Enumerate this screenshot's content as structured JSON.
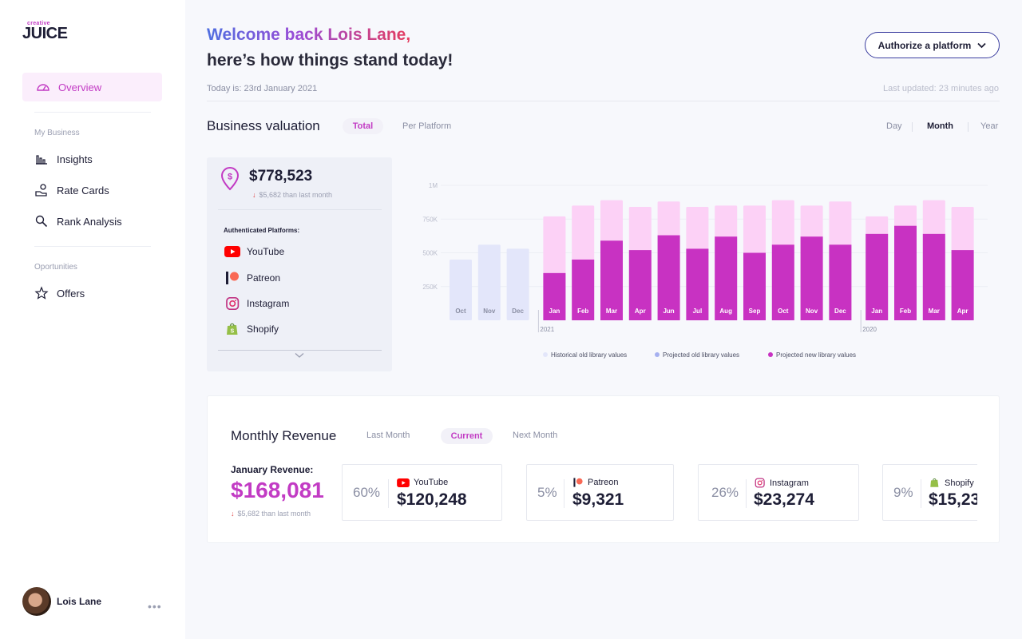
{
  "logo": {
    "small": "creative",
    "big": "JUICE"
  },
  "sidebar": {
    "overview": "Overview",
    "section_business": "My Business",
    "items": [
      "Insights",
      "Rate Cards",
      "Rank Analysis"
    ],
    "section_opportunities": "Oportunities",
    "offers": "Offers",
    "user_name": "Lois Lane",
    "more": "•••"
  },
  "header": {
    "welcome": "Welcome back Lois Lane,",
    "subtitle": "here’s how things stand today!",
    "today": "Today is: 23rd January 2021",
    "updated": "Last updated: 23 minutes ago",
    "authorize": "Authorize a platform"
  },
  "valuation": {
    "title": "Business valuation",
    "tab_total": "Total",
    "tab_per_platform": "Per Platform",
    "period_day": "Day",
    "period_month": "Month",
    "period_year": "Year",
    "amount": "$778,523",
    "change": "$5,682 than last  month",
    "auth_label": "Authenticated Platforms:",
    "platforms": [
      "YouTube",
      "Patreon",
      "Instagram",
      "Shopify"
    ]
  },
  "chart_data": {
    "type": "bar",
    "stacked": true,
    "categories": [
      "Oct",
      "Nov",
      "Dec",
      "Jan",
      "Feb",
      "Mar",
      "Apr",
      "Jun",
      "Jul",
      "Aug",
      "Sep",
      "Oct",
      "Nov",
      "Dec",
      "Jan",
      "Feb",
      "Mar",
      "Apr"
    ],
    "year_markers": [
      "2021",
      "2020"
    ],
    "y_ticks": [
      "1M",
      "750K",
      "500K",
      "250K"
    ],
    "ylim": [
      0,
      1000000
    ],
    "legend_position": "bottom",
    "grid": true,
    "colors": {
      "historical": "#e3e6fa",
      "projected_old": "#fcd1f6",
      "projected_new": "#c832c2"
    },
    "series": [
      {
        "name": "Historical old library values",
        "values": [
          450000,
          560000,
          530000,
          0,
          0,
          0,
          0,
          0,
          0,
          0,
          0,
          0,
          0,
          0,
          0,
          0,
          0,
          0
        ]
      },
      {
        "name": "Projected new library values",
        "values": [
          0,
          0,
          0,
          350000,
          450000,
          590000,
          520000,
          630000,
          530000,
          620000,
          500000,
          560000,
          620000,
          560000,
          640000,
          700000,
          640000,
          520000
        ]
      },
      {
        "name": "Projected old library values",
        "values": [
          0,
          0,
          0,
          420000,
          400000,
          300000,
          320000,
          250000,
          310000,
          230000,
          350000,
          330000,
          230000,
          320000,
          130000,
          150000,
          250000,
          320000
        ]
      }
    ],
    "legend": [
      "Historical old library values",
      "Projected old library values",
      "Projected new library values"
    ]
  },
  "revenue": {
    "title": "Monthly Revenue",
    "tab_last": "Last Month",
    "tab_current": "Current",
    "tab_next": "Next Month",
    "jan_label": "January Revenue:",
    "jan_amount": "$168,081",
    "jan_change": "$5,682 than last  month",
    "tiles": [
      {
        "pct": "60%",
        "name": "YouTube",
        "amount": "$120,248"
      },
      {
        "pct": "5%",
        "name": "Patreon",
        "amount": "$9,321"
      },
      {
        "pct": "26%",
        "name": "Instagram",
        "amount": "$23,274"
      },
      {
        "pct": "9%",
        "name": "Shopify",
        "amount": "$15,23"
      }
    ]
  }
}
